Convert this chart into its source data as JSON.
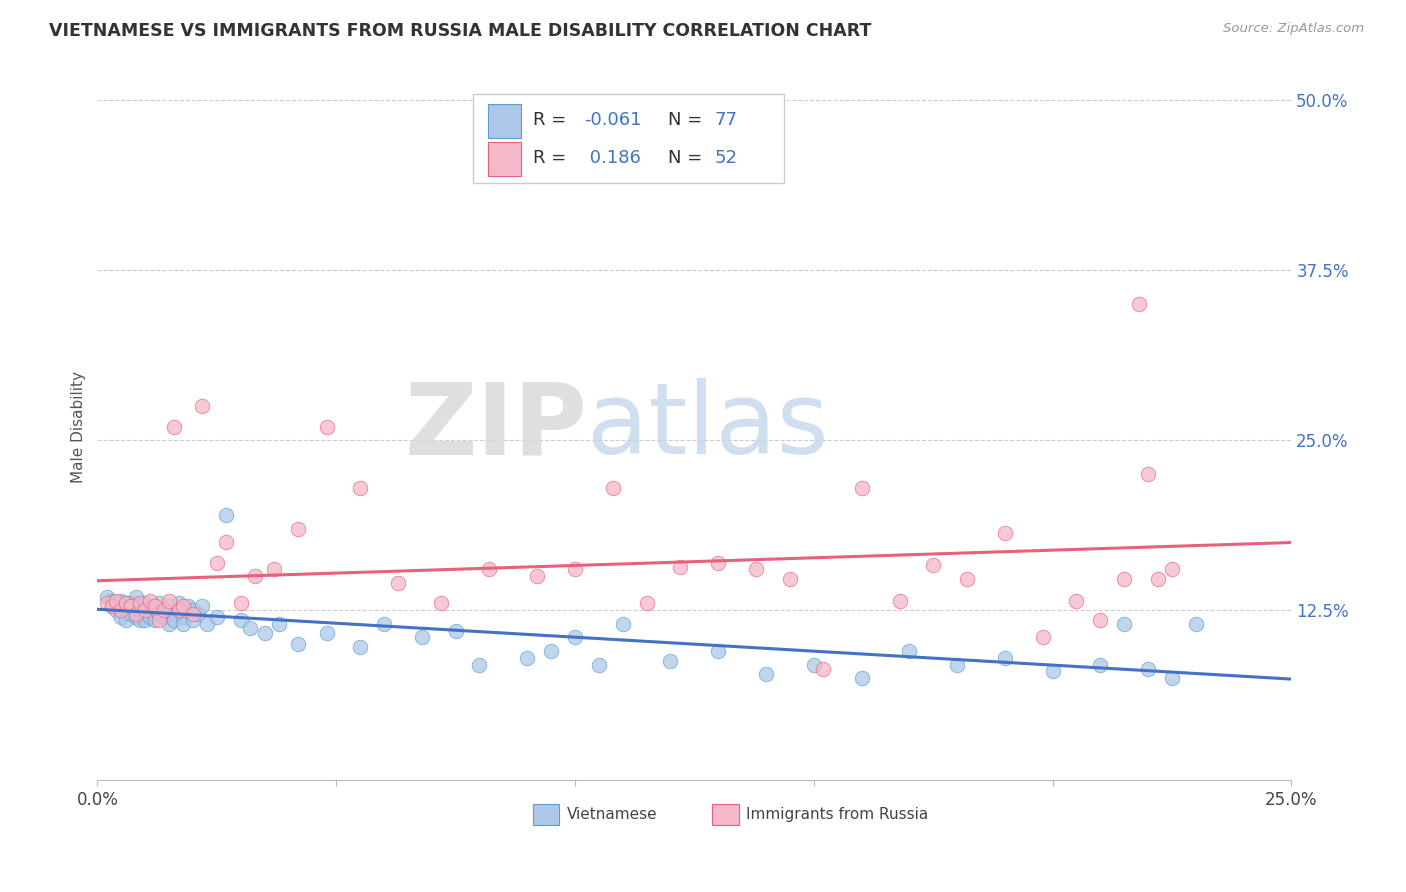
{
  "title": "VIETNAMESE VS IMMIGRANTS FROM RUSSIA MALE DISABILITY CORRELATION CHART",
  "source_text": "Source: ZipAtlas.com",
  "ylabel": "Male Disability",
  "xlim": [
    0.0,
    0.25
  ],
  "ylim": [
    0.0,
    0.52
  ],
  "xticks": [
    0.0,
    0.05,
    0.1,
    0.15,
    0.2,
    0.25
  ],
  "xtick_labels": [
    "0.0%",
    "",
    "",
    "",
    "",
    "25.0%"
  ],
  "ytick_labels": [
    "12.5%",
    "25.0%",
    "37.5%",
    "50.0%"
  ],
  "ytick_positions": [
    0.125,
    0.25,
    0.375,
    0.5
  ],
  "r1": -0.061,
  "n1": 77,
  "r2": 0.186,
  "n2": 52,
  "legend_label1": "Vietnamese",
  "legend_label2": "Immigrants from Russia",
  "color_viet_fill": "#adc8e8",
  "color_viet_edge": "#5a9fd4",
  "color_russia_fill": "#f5b8c8",
  "color_russia_edge": "#e8607a",
  "color_viet_line": "#4472c4",
  "color_russia_line": "#e8607a",
  "watermark_zip": "ZIP",
  "watermark_atlas": "atlas",
  "viet_x": [
    0.002,
    0.003,
    0.003,
    0.004,
    0.004,
    0.005,
    0.005,
    0.005,
    0.006,
    0.006,
    0.006,
    0.007,
    0.007,
    0.007,
    0.008,
    0.008,
    0.008,
    0.009,
    0.009,
    0.009,
    0.01,
    0.01,
    0.01,
    0.011,
    0.011,
    0.012,
    0.012,
    0.013,
    0.013,
    0.014,
    0.014,
    0.015,
    0.015,
    0.016,
    0.016,
    0.017,
    0.017,
    0.018,
    0.018,
    0.019,
    0.02,
    0.02,
    0.021,
    0.022,
    0.023,
    0.025,
    0.027,
    0.03,
    0.032,
    0.035,
    0.038,
    0.042,
    0.048,
    0.055,
    0.06,
    0.068,
    0.075,
    0.08,
    0.09,
    0.095,
    0.1,
    0.105,
    0.11,
    0.12,
    0.13,
    0.14,
    0.15,
    0.16,
    0.17,
    0.18,
    0.19,
    0.2,
    0.21,
    0.215,
    0.22,
    0.225,
    0.23
  ],
  "viet_y": [
    0.135,
    0.128,
    0.132,
    0.125,
    0.13,
    0.128,
    0.132,
    0.12,
    0.125,
    0.13,
    0.118,
    0.128,
    0.122,
    0.13,
    0.125,
    0.12,
    0.135,
    0.128,
    0.118,
    0.125,
    0.13,
    0.122,
    0.118,
    0.128,
    0.12,
    0.125,
    0.118,
    0.13,
    0.122,
    0.125,
    0.12,
    0.128,
    0.115,
    0.122,
    0.118,
    0.125,
    0.13,
    0.12,
    0.115,
    0.128,
    0.118,
    0.125,
    0.122,
    0.128,
    0.115,
    0.12,
    0.195,
    0.118,
    0.112,
    0.108,
    0.115,
    0.1,
    0.108,
    0.098,
    0.115,
    0.105,
    0.11,
    0.085,
    0.09,
    0.095,
    0.105,
    0.085,
    0.115,
    0.088,
    0.095,
    0.078,
    0.085,
    0.075,
    0.095,
    0.085,
    0.09,
    0.08,
    0.085,
    0.115,
    0.082,
    0.075,
    0.115
  ],
  "russia_x": [
    0.002,
    0.003,
    0.004,
    0.005,
    0.006,
    0.007,
    0.008,
    0.009,
    0.01,
    0.011,
    0.012,
    0.013,
    0.014,
    0.015,
    0.016,
    0.017,
    0.018,
    0.02,
    0.022,
    0.025,
    0.027,
    0.03,
    0.033,
    0.037,
    0.042,
    0.048,
    0.055,
    0.063,
    0.072,
    0.082,
    0.092,
    0.1,
    0.108,
    0.115,
    0.122,
    0.13,
    0.138,
    0.145,
    0.152,
    0.16,
    0.168,
    0.175,
    0.182,
    0.19,
    0.198,
    0.205,
    0.21,
    0.215,
    0.218,
    0.22,
    0.222,
    0.225
  ],
  "russia_y": [
    0.13,
    0.128,
    0.132,
    0.125,
    0.13,
    0.128,
    0.122,
    0.13,
    0.125,
    0.132,
    0.128,
    0.118,
    0.125,
    0.132,
    0.26,
    0.125,
    0.128,
    0.122,
    0.275,
    0.16,
    0.175,
    0.13,
    0.15,
    0.155,
    0.185,
    0.26,
    0.215,
    0.145,
    0.13,
    0.155,
    0.15,
    0.155,
    0.215,
    0.13,
    0.157,
    0.16,
    0.155,
    0.148,
    0.082,
    0.215,
    0.132,
    0.158,
    0.148,
    0.182,
    0.105,
    0.132,
    0.118,
    0.148,
    0.35,
    0.225,
    0.148,
    0.155
  ]
}
